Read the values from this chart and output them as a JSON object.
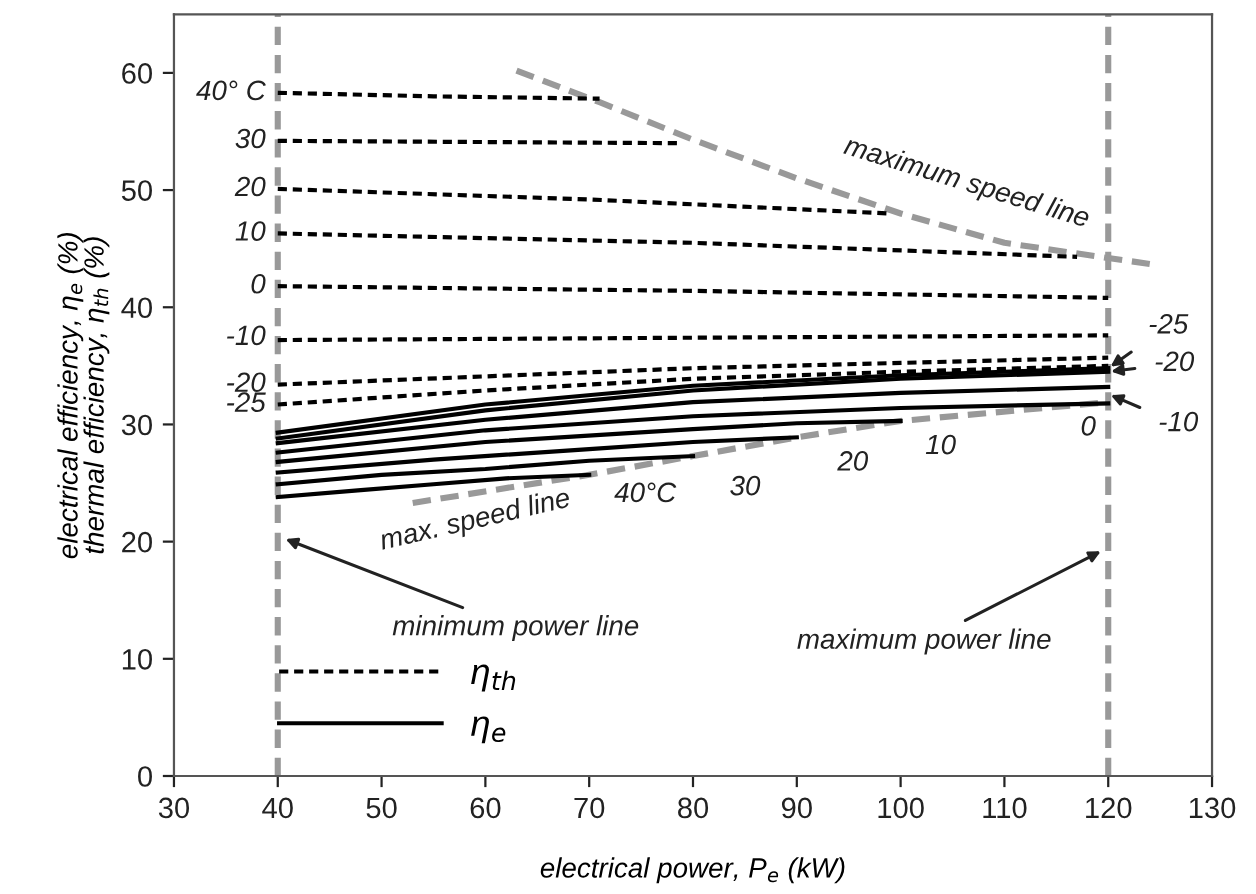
{
  "chart_data": {
    "type": "line",
    "xlabel": "electrical power, P$_{e}$ (kW)",
    "ylabel": "electrical efficiency, η$_{e}$ (%)\nthermal efficiency, η$_{th}$ (%)",
    "xlim": [
      30,
      130
    ],
    "xticks": [
      30,
      40,
      50,
      60,
      70,
      80,
      90,
      100,
      110,
      120,
      130
    ],
    "ylim": [
      0,
      65
    ],
    "yticks": [
      0,
      10,
      20,
      30,
      40,
      50,
      60
    ],
    "grid": false,
    "legend": "bottom left",
    "marker": "none",
    "series": [
      {
        "name": "η$_{th}$",
        "color": "#000000",
        "line_style": "dashed",
        "x": [
          40,
          55,
          71
        ],
        "values": [
          58.3,
          58.0,
          57.8
        ]
      },
      {
        "color": "#000000",
        "line_style": "dashed",
        "x": [
          40,
          60,
          79
        ],
        "values": [
          54.2,
          54.1,
          54.0
        ]
      },
      {
        "color": "#000000",
        "line_style": "dashed",
        "x": [
          40,
          70,
          99
        ],
        "values": [
          50.1,
          49.2,
          48.0
        ]
      },
      {
        "color": "#000000",
        "line_style": "dashed",
        "x": [
          40,
          80,
          117
        ],
        "values": [
          46.3,
          45.5,
          44.3
        ]
      },
      {
        "color": "#000000",
        "line_style": "dashed",
        "x": [
          40,
          80,
          120
        ],
        "values": [
          41.8,
          41.4,
          40.8
        ]
      },
      {
        "color": "#000000",
        "line_style": "dashed",
        "x": [
          40,
          80,
          120
        ],
        "values": [
          37.2,
          37.4,
          37.6
        ]
      },
      {
        "color": "#000000",
        "line_style": "dashed",
        "x": [
          40,
          80,
          120
        ],
        "values": [
          33.4,
          34.8,
          35.7
        ]
      },
      {
        "color": "#000000",
        "line_style": "dashed",
        "x": [
          40,
          60,
          80,
          100,
          120
        ],
        "values": [
          31.7,
          32.9,
          33.9,
          34.5,
          35.0
        ]
      },
      {
        "name": "η$_{e}$",
        "color": "#000000",
        "line_style": "solid",
        "x": [
          40,
          60,
          80,
          100,
          120
        ],
        "values": [
          29.3,
          31.7,
          33.3,
          34.2,
          34.8
        ]
      },
      {
        "color": "#000000",
        "line_style": "solid",
        "x": [
          40,
          60,
          80,
          100,
          120
        ],
        "values": [
          28.8,
          31.2,
          32.9,
          33.9,
          34.5
        ]
      },
      {
        "color": "#000000",
        "line_style": "solid",
        "x": [
          40,
          60,
          80,
          100,
          120
        ],
        "values": [
          28.4,
          30.4,
          31.9,
          32.7,
          33.2
        ]
      },
      {
        "color": "#000000",
        "line_style": "solid",
        "x": [
          40,
          60,
          80,
          100,
          120
        ],
        "values": [
          27.6,
          29.5,
          30.7,
          31.4,
          31.8
        ]
      },
      {
        "color": "#000000",
        "line_style": "solid",
        "x": [
          40,
          60,
          80,
          90,
          100
        ],
        "values": [
          26.8,
          28.5,
          29.6,
          30.1,
          30.3
        ]
      },
      {
        "color": "#000000",
        "line_style": "solid",
        "x": [
          40,
          55,
          70,
          80,
          90
        ],
        "values": [
          25.9,
          27.0,
          27.9,
          28.5,
          28.9
        ]
      },
      {
        "color": "#000000",
        "line_style": "solid",
        "x": [
          40,
          50,
          60,
          70,
          80
        ],
        "values": [
          24.9,
          25.7,
          26.2,
          26.9,
          27.3
        ]
      },
      {
        "color": "#000000",
        "line_style": "solid",
        "x": [
          40,
          48,
          55,
          62,
          70
        ],
        "values": [
          23.8,
          24.4,
          24.9,
          25.4,
          25.7
        ]
      },
      {
        "color": "#999999",
        "line_style": "dashed",
        "x": [
          63,
          71,
          80,
          90,
          100,
          110,
          120,
          124
        ],
        "values": [
          60.2,
          57.5,
          54.3,
          51.0,
          48.0,
          45.5,
          44.2,
          43.7
        ]
      },
      {
        "color": "#999999",
        "line_style": "dashed",
        "x": [
          53,
          70,
          80,
          90,
          100,
          120
        ],
        "values": [
          23.3,
          25.7,
          27.3,
          28.9,
          30.3,
          31.9
        ]
      }
    ],
    "ref_lines": [
      {
        "axis": "x",
        "value": 40,
        "label": "minimum power line",
        "color": "#999999",
        "line_style": "dashed"
      },
      {
        "axis": "x",
        "value": 120,
        "label": "maximum power line",
        "color": "#999999",
        "line_style": "dashed"
      }
    ],
    "annotations": [
      {
        "text": "40° C",
        "x": 40,
        "y": 58.3
      },
      {
        "text": "30",
        "x": 40,
        "y": 54.2
      },
      {
        "text": "20",
        "x": 40,
        "y": 50.1
      },
      {
        "text": "10",
        "x": 40,
        "y": 46.3
      },
      {
        "text": "0",
        "x": 40,
        "y": 41.8
      },
      {
        "text": "-10",
        "x": 40,
        "y": 37.4
      },
      {
        "text": "-20",
        "x": 40,
        "y": 33.4
      },
      {
        "text": "-25",
        "x": 40,
        "y": 31.7
      },
      {
        "text": "maximum speed line",
        "x": 100,
        "y": 48.0
      },
      {
        "text": "max. speed line",
        "x": 60,
        "y": 24.5
      },
      {
        "text": "40°C",
        "x": 70,
        "y": 25.7
      },
      {
        "text": "30",
        "x": 80,
        "y": 27.3
      },
      {
        "text": "20",
        "x": 90,
        "y": 28.9
      },
      {
        "text": "10",
        "x": 100,
        "y": 30.3
      },
      {
        "text": "0",
        "x": 120,
        "y": 31.9
      },
      {
        "text": "-25",
        "x": 120,
        "y": 34.8
      },
      {
        "text": "-20",
        "x": 120,
        "y": 34.5
      },
      {
        "text": "-10",
        "x": 120,
        "y": 32.6
      }
    ]
  }
}
